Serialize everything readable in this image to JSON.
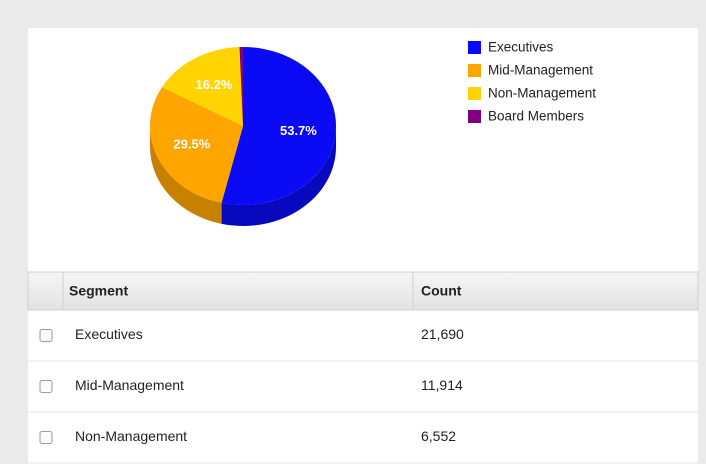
{
  "chart_data": {
    "type": "pie",
    "categories": [
      "Executives",
      "Mid-Management",
      "Non-Management",
      "Board Members"
    ],
    "values": [
      53.7,
      29.5,
      16.2,
      0.6
    ],
    "value_labels": [
      "53.7%",
      "29.5%",
      "16.2%",
      null
    ],
    "colors": [
      "#0a0af5",
      "#ffa500",
      "#ffd400",
      "#800080"
    ],
    "legend": "top-right"
  },
  "table": {
    "columns": [
      "Segment",
      "Count"
    ],
    "rows": [
      [
        "Executives",
        "21,690"
      ],
      [
        "Mid-Management",
        "11,914"
      ],
      [
        "Non-Management",
        "6,552"
      ]
    ]
  }
}
